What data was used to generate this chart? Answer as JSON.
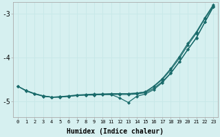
{
  "xlabel": "Humidex (Indice chaleur)",
  "background_color": "#d6f0f0",
  "grid_color": "#c8e8e8",
  "line_color": "#1a6b6b",
  "xlim": [
    -0.5,
    23.5
  ],
  "ylim": [
    -5.35,
    -2.75
  ],
  "yticks": [
    -5,
    -4,
    -3
  ],
  "ytick_labels": [
    "-5",
    "-4",
    "-3"
  ],
  "xticks": [
    0,
    1,
    2,
    3,
    4,
    5,
    6,
    7,
    8,
    9,
    10,
    11,
    12,
    13,
    14,
    15,
    16,
    17,
    18,
    19,
    20,
    21,
    22,
    23
  ],
  "line1_x": [
    0,
    1,
    2,
    3,
    4,
    5,
    6,
    7,
    8,
    9,
    10,
    11,
    12,
    13,
    14,
    15,
    16,
    17,
    18,
    19,
    20,
    21,
    22,
    23
  ],
  "line1_y": [
    -4.65,
    -4.76,
    -4.83,
    -4.88,
    -4.9,
    -4.89,
    -4.87,
    -4.85,
    -4.84,
    -4.83,
    -4.83,
    -4.82,
    -4.82,
    -4.82,
    -4.81,
    -4.78,
    -4.65,
    -4.48,
    -4.25,
    -3.98,
    -3.68,
    -3.42,
    -3.1,
    -2.8
  ],
  "line2_x": [
    0,
    1,
    2,
    3,
    4,
    5,
    6,
    7,
    8,
    9,
    10,
    11,
    12,
    13,
    14,
    15,
    16,
    17,
    18,
    19,
    20,
    21,
    22,
    23
  ],
  "line2_y": [
    -4.65,
    -4.75,
    -4.82,
    -4.87,
    -4.9,
    -4.89,
    -4.88,
    -4.86,
    -4.85,
    -4.85,
    -4.84,
    -4.84,
    -4.84,
    -4.84,
    -4.83,
    -4.8,
    -4.7,
    -4.55,
    -4.35,
    -4.1,
    -3.82,
    -3.55,
    -3.2,
    -2.85
  ],
  "line3_x": [
    0,
    1,
    2,
    3,
    4,
    5,
    6,
    7,
    8,
    9,
    10,
    11,
    12,
    13,
    14,
    15,
    16,
    17,
    18,
    19,
    20,
    21,
    22,
    23
  ],
  "line3_y": [
    -4.65,
    -4.75,
    -4.82,
    -4.87,
    -4.9,
    -4.9,
    -4.88,
    -4.86,
    -4.85,
    -4.85,
    -4.84,
    -4.84,
    -4.92,
    -5.02,
    -4.88,
    -4.83,
    -4.73,
    -4.57,
    -4.36,
    -4.1,
    -3.82,
    -3.56,
    -3.2,
    -2.85
  ],
  "line4_x": [
    3,
    4,
    5,
    6,
    7,
    8,
    9,
    10,
    11,
    12,
    13,
    14,
    15,
    16,
    17,
    18,
    19,
    20,
    21,
    22,
    23
  ],
  "line4_y": [
    -4.88,
    -4.9,
    -4.9,
    -4.88,
    -4.86,
    -4.85,
    -4.84,
    -4.83,
    -4.83,
    -4.82,
    -4.82,
    -4.81,
    -4.78,
    -4.66,
    -4.5,
    -4.28,
    -4.02,
    -3.72,
    -3.45,
    -3.12,
    -2.83
  ]
}
